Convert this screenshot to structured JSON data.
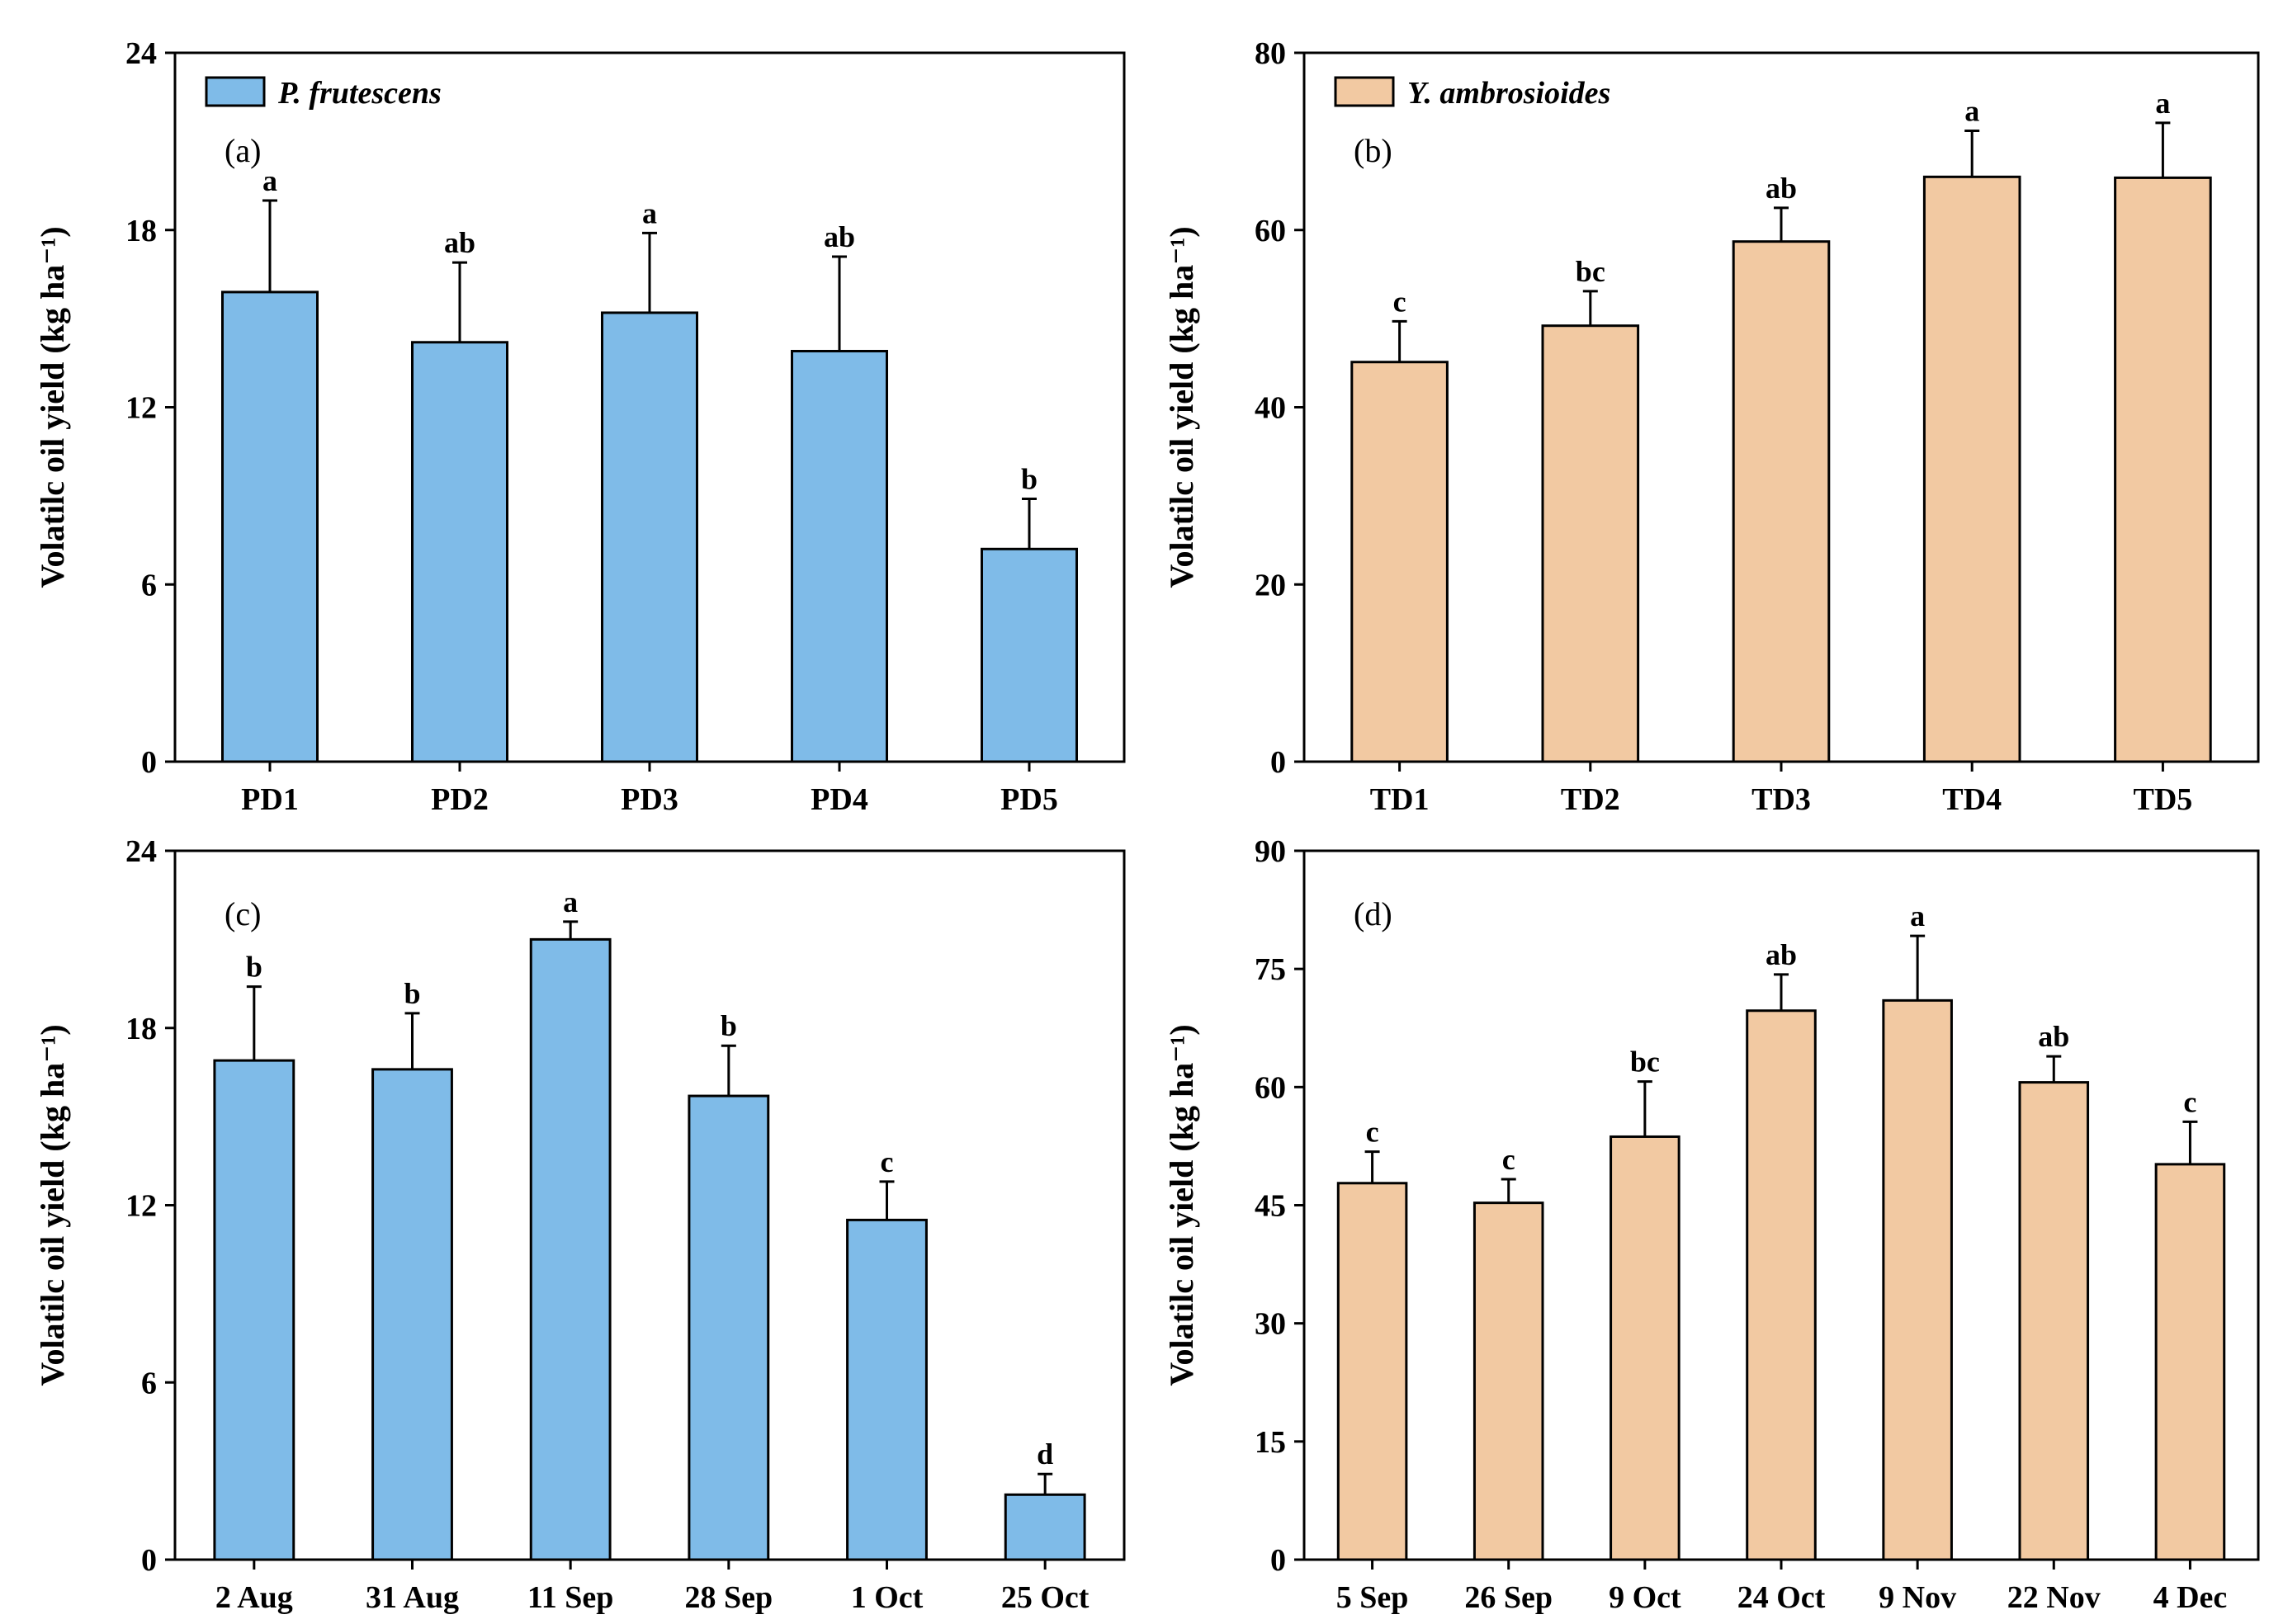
{
  "charts": [
    {
      "id": "a",
      "panel_label": "(a)",
      "ylabel": "Volatilc oil yield (kg ha⁻¹)",
      "ylim": [
        0,
        24
      ],
      "yticks": [
        0,
        6,
        12,
        18,
        24
      ],
      "legend": "P. frutescens",
      "color": "#7fbbe8",
      "categories": [
        "PD1",
        "PD2",
        "PD3",
        "PD4",
        "PD5"
      ],
      "values": [
        15.9,
        14.2,
        15.2,
        13.9,
        7.2
      ],
      "errors": [
        3.1,
        2.7,
        2.7,
        3.2,
        1.7
      ],
      "sig": [
        "a",
        "ab",
        "a",
        "ab",
        "b"
      ]
    },
    {
      "id": "b",
      "panel_label": "(b)",
      "ylabel": "Volatilc oil yield (kg ha⁻¹)",
      "ylim": [
        0,
        80
      ],
      "yticks": [
        0,
        20,
        40,
        60,
        80
      ],
      "legend": "Y. ambrosioides",
      "color": "#f2c9a2",
      "categories": [
        "TD1",
        "TD2",
        "TD3",
        "TD4",
        "TD5"
      ],
      "values": [
        45.1,
        49.2,
        58.7,
        66.0,
        65.9
      ],
      "errors": [
        4.6,
        3.9,
        3.8,
        5.2,
        6.2
      ],
      "sig": [
        "c",
        "bc",
        "ab",
        "a",
        "a"
      ]
    },
    {
      "id": "c",
      "panel_label": "(c)",
      "ylabel": "Volatilc oil yield (kg ha⁻¹)",
      "ylim": [
        0,
        24
      ],
      "yticks": [
        0,
        6,
        12,
        18,
        24
      ],
      "legend": "",
      "color": "#7fbbe8",
      "categories": [
        "2 Aug",
        "31 Aug",
        "11 Sep",
        "28 Sep",
        "1 Oct",
        "25 Oct"
      ],
      "values": [
        16.9,
        16.6,
        21.0,
        15.7,
        11.5,
        2.2
      ],
      "errors": [
        2.5,
        1.9,
        0.6,
        1.7,
        1.3,
        0.7
      ],
      "sig": [
        "b",
        "b",
        "a",
        "b",
        "c",
        "d"
      ]
    },
    {
      "id": "d",
      "panel_label": "(d)",
      "ylabel": "Volatilc oil yield (kg ha⁻¹)",
      "ylim": [
        0,
        90
      ],
      "yticks": [
        0,
        15,
        30,
        45,
        60,
        75,
        90
      ],
      "legend": "",
      "color": "#f2c9a2",
      "categories": [
        "5 Sep",
        "26 Sep",
        "9 Oct",
        "24 Oct",
        "9 Nov",
        "22 Nov",
        "4 Dec"
      ],
      "values": [
        47.8,
        45.3,
        53.7,
        69.7,
        71.0,
        60.6,
        50.2
      ],
      "errors": [
        4.0,
        3.0,
        7.0,
        4.6,
        8.2,
        3.3,
        5.4
      ],
      "sig": [
        "c",
        "c",
        "bc",
        "ab",
        "a",
        "ab",
        "c"
      ]
    }
  ]
}
